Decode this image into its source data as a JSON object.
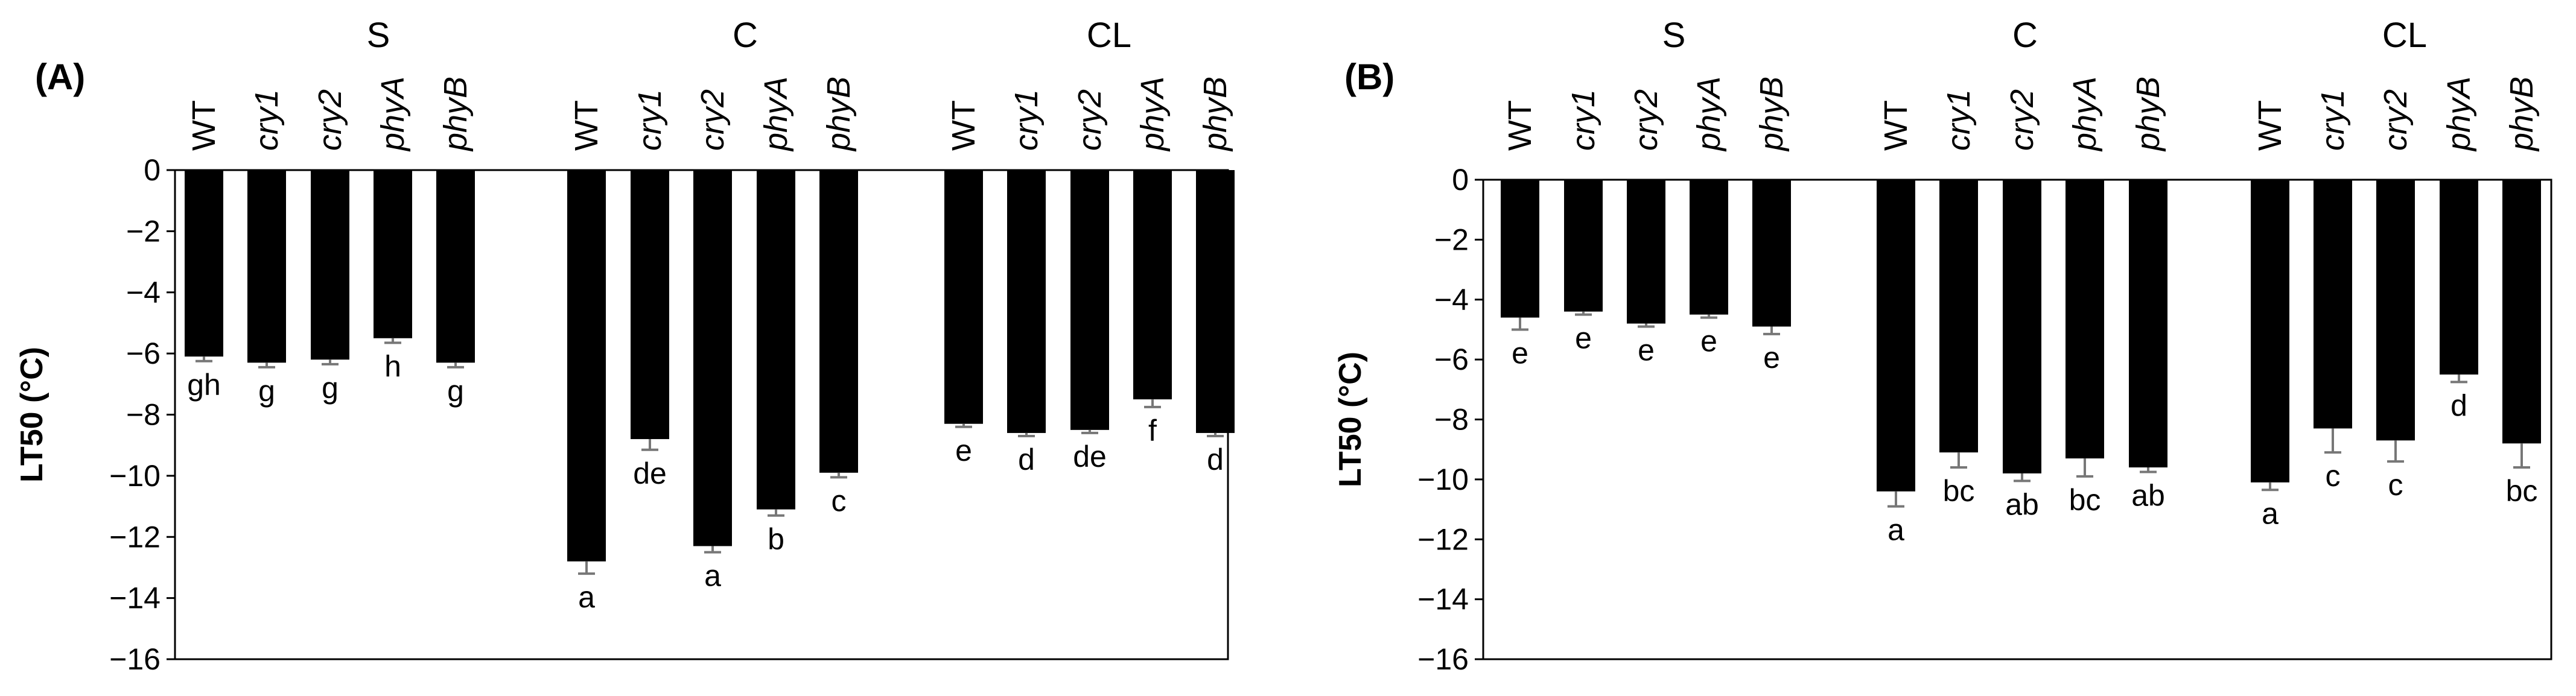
{
  "chart_data": [
    {
      "type": "bar",
      "panel_label": "(A)",
      "ylabel": "LT50 (°C)",
      "ylim": [
        -16,
        0
      ],
      "yticks": [
        "0",
        "−2",
        "−4",
        "−6",
        "−8",
        "−10",
        "−12",
        "−14",
        "−16"
      ],
      "groups": [
        {
          "name": "S",
          "categories": [
            "WT",
            "cry1",
            "cry2",
            "phyA",
            "phyB"
          ],
          "values": [
            -6.1,
            -6.3,
            -6.2,
            -5.5,
            -6.3
          ],
          "errors": [
            0.15,
            0.15,
            0.15,
            0.15,
            0.15
          ],
          "letters": [
            "gh",
            "g",
            "g",
            "h",
            "g"
          ]
        },
        {
          "name": "C",
          "categories": [
            "WT",
            "cry1",
            "cry2",
            "phyA",
            "phyB"
          ],
          "values": [
            -12.8,
            -8.8,
            -12.3,
            -11.1,
            -9.9
          ],
          "errors": [
            0.4,
            0.35,
            0.2,
            0.2,
            0.15
          ],
          "letters": [
            "a",
            "de",
            "a",
            "b",
            "c"
          ]
        },
        {
          "name": "CL",
          "categories": [
            "WT",
            "cry1",
            "cry2",
            "phyA",
            "phyB"
          ],
          "values": [
            -8.3,
            -8.6,
            -8.5,
            -7.5,
            -8.6
          ],
          "errors": [
            0.1,
            0.1,
            0.1,
            0.25,
            0.1
          ],
          "letters": [
            "e",
            "d",
            "de",
            "f",
            "d"
          ]
        }
      ]
    },
    {
      "type": "bar",
      "panel_label": "(B)",
      "ylabel": "LT50 (°C)",
      "ylim": [
        -16,
        0
      ],
      "yticks": [
        "0",
        "−2",
        "−4",
        "−6",
        "−8",
        "−10",
        "−12",
        "−14",
        "−16"
      ],
      "groups": [
        {
          "name": "S",
          "categories": [
            "WT",
            "cry1",
            "cry2",
            "phyA",
            "phyB"
          ],
          "values": [
            -4.6,
            -4.4,
            -4.8,
            -4.5,
            -4.9
          ],
          "errors": [
            0.4,
            0.1,
            0.1,
            0.1,
            0.25
          ],
          "letters": [
            "e",
            "e",
            "e",
            "e",
            "e"
          ]
        },
        {
          "name": "C",
          "categories": [
            "WT",
            "cry1",
            "cry2",
            "phyA",
            "phyB"
          ],
          "values": [
            -10.4,
            -9.1,
            -9.8,
            -9.3,
            -9.6
          ],
          "errors": [
            0.5,
            0.5,
            0.25,
            0.6,
            0.15
          ],
          "letters": [
            "a",
            "bc",
            "ab",
            "bc",
            "ab"
          ]
        },
        {
          "name": "CL",
          "categories": [
            "WT",
            "cry1",
            "cry2",
            "phyA",
            "phyB"
          ],
          "values": [
            -10.1,
            -8.3,
            -8.7,
            -6.5,
            -8.8
          ],
          "errors": [
            0.25,
            0.8,
            0.7,
            0.25,
            0.8
          ],
          "letters": [
            "a",
            "c",
            "c",
            "d",
            "bc"
          ]
        }
      ]
    }
  ]
}
